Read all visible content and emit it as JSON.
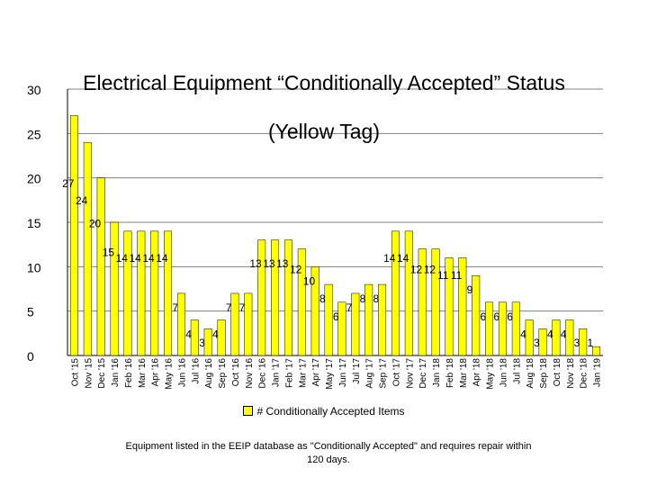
{
  "chart_data": {
    "type": "bar",
    "title": "Electrical Equipment “Conditionally Accepted” Status (Yellow Tag)",
    "title_lines": [
      "Electrical Equipment “Conditionally Accepted” Status",
      "(Yellow Tag)"
    ],
    "categories": [
      "Oct '15",
      "Nov '15",
      "Dec '15",
      "Jan '16",
      "Feb '16",
      "Mar '16",
      "Apr '16",
      "May '16",
      "Jun '16",
      "Jul '16",
      "Aug '16",
      "Sep '16",
      "Oct '16",
      "Nov '16",
      "Dec '16",
      "Jan '17",
      "Feb '17",
      "Mar '17",
      "Apr '17",
      "May '17",
      "Jun '17",
      "Jul '17",
      "Aug '17",
      "Sep '17",
      "Oct '17",
      "Nov '17",
      "Dec '17",
      "Jan '18",
      "Feb '18",
      "Mar '18",
      "Apr '18",
      "May '18",
      "Jun '18",
      "Jul '18",
      "Aug '18",
      "Sep '18",
      "Oct '18",
      "Nov '18",
      "Dec '18",
      "Jan '19"
    ],
    "series": [
      {
        "name": "# Conditionally Accepted Items",
        "values": [
          27,
          24,
          20,
          15,
          14,
          14,
          14,
          14,
          7,
          4,
          3,
          4,
          7,
          7,
          13,
          13,
          13,
          12,
          10,
          8,
          6,
          7,
          8,
          8,
          14,
          14,
          12,
          12,
          11,
          11,
          9,
          6,
          6,
          6,
          4,
          3,
          4,
          4,
          3,
          1
        ],
        "color": "#ffff00"
      }
    ],
    "ylim": [
      0,
      30
    ],
    "yticks": [
      0,
      5,
      10,
      15,
      20,
      25,
      30
    ],
    "grid": true,
    "legend": "bottom",
    "xlabel": "",
    "ylabel": ""
  },
  "legend_label": "# Conditionally Accepted Items",
  "footnote": "Equipment listed in the EEIP database as \"Conditionally Accepted\" and requires repair within 120 days.",
  "colors": {
    "bar": "#ffff00",
    "bar_border": "#000000",
    "gridline": "#808080"
  }
}
